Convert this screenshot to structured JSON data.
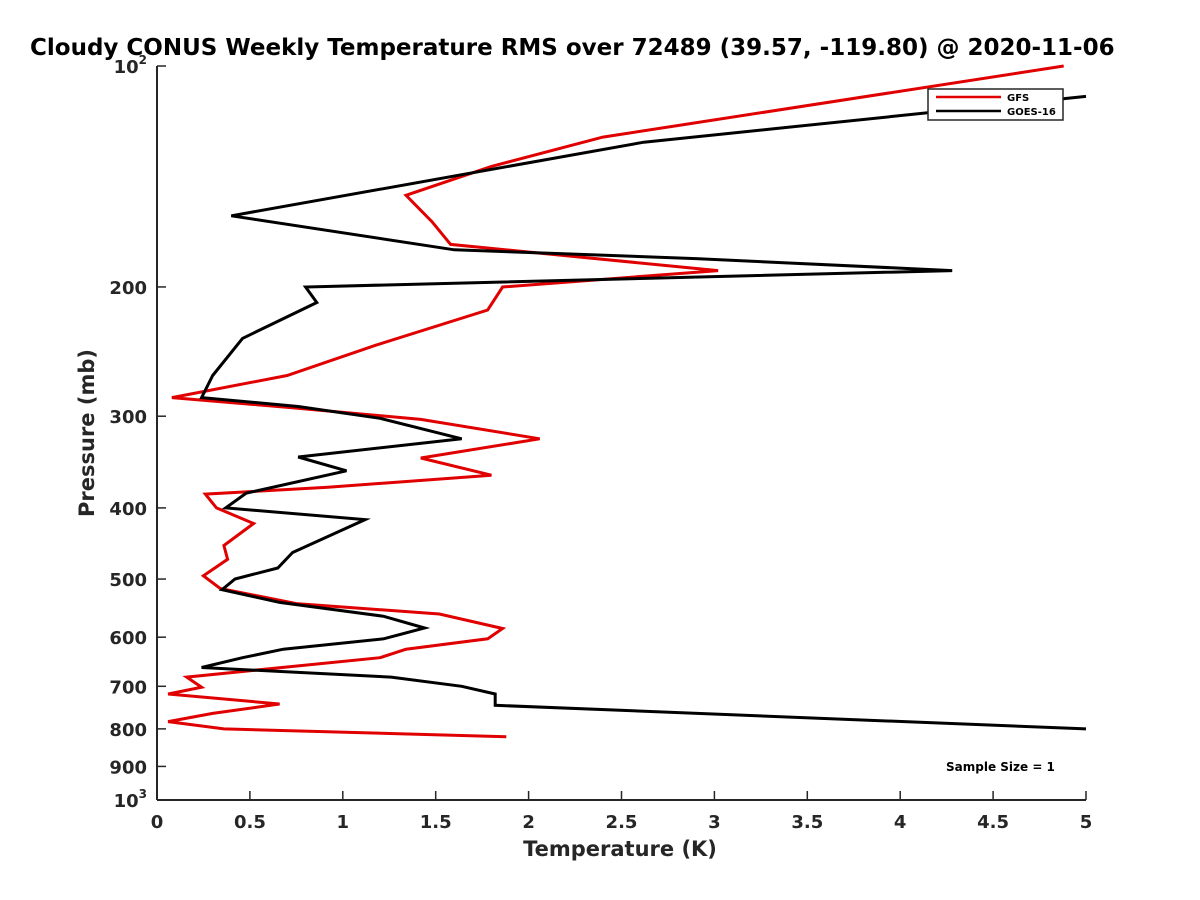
{
  "chart_data": {
    "type": "line",
    "title": "Cloudy CONUS Weekly Temperature RMS over 72489 (39.57, -119.80) @ 2020-11-06",
    "xlabel": "Temperature (K)",
    "ylabel": "Pressure (mb)",
    "xlim": [
      0,
      5
    ],
    "ylim": [
      100,
      1000
    ],
    "yscale": "log",
    "y_reversed": true,
    "grid": false,
    "legend_position": "top-right",
    "x_ticks": [
      "0",
      "0.5",
      "1",
      "1.5",
      "2",
      "2.5",
      "3",
      "3.5",
      "4",
      "4.5",
      "5"
    ],
    "y_ticks": [
      {
        "value": 100,
        "base": "10",
        "exp": "2"
      },
      {
        "value": 200,
        "label": "200"
      },
      {
        "value": 300,
        "label": "300"
      },
      {
        "value": 400,
        "label": "400"
      },
      {
        "value": 500,
        "label": "500"
      },
      {
        "value": 600,
        "label": "600"
      },
      {
        "value": 700,
        "label": "700"
      },
      {
        "value": 800,
        "label": "800"
      },
      {
        "value": 900,
        "label": "900"
      },
      {
        "value": 1000,
        "base": "10",
        "exp": "3"
      }
    ],
    "annotation": "Sample Size = 1",
    "series": [
      {
        "name": "GFS",
        "color": "#e00000",
        "points": [
          [
            4.88,
            100
          ],
          [
            2.4,
            125
          ],
          [
            1.8,
            137
          ],
          [
            1.34,
            150
          ],
          [
            1.48,
            163
          ],
          [
            1.58,
            175
          ],
          [
            3.02,
            190
          ],
          [
            1.86,
            200
          ],
          [
            1.78,
            215
          ],
          [
            1.18,
            240
          ],
          [
            0.7,
            264
          ],
          [
            0.08,
            283
          ],
          [
            0.72,
            292
          ],
          [
            1.42,
            303
          ],
          [
            2.06,
            322
          ],
          [
            1.42,
            342
          ],
          [
            1.8,
            361
          ],
          [
            0.92,
            375
          ],
          [
            0.26,
            383
          ],
          [
            0.32,
            400
          ],
          [
            0.52,
            420
          ],
          [
            0.36,
            450
          ],
          [
            0.38,
            470
          ],
          [
            0.25,
            495
          ],
          [
            0.34,
            515
          ],
          [
            0.75,
            540
          ],
          [
            1.52,
            558
          ],
          [
            1.86,
            584
          ],
          [
            1.78,
            603
          ],
          [
            1.34,
            623
          ],
          [
            1.2,
            640
          ],
          [
            0.72,
            658
          ],
          [
            0.16,
            680
          ],
          [
            0.24,
            702
          ],
          [
            0.06,
            717
          ],
          [
            0.66,
            740
          ],
          [
            0.3,
            762
          ],
          [
            0.06,
            782
          ],
          [
            0.36,
            800
          ],
          [
            1.88,
            820
          ]
        ]
      },
      {
        "name": "GOES-16",
        "color": "#000000",
        "points": [
          [
            5.0,
            110
          ],
          [
            2.62,
            127
          ],
          [
            0.4,
            160
          ],
          [
            1.6,
            178
          ],
          [
            2.9,
            183
          ],
          [
            4.28,
            190
          ],
          [
            0.8,
            200
          ],
          [
            0.86,
            210
          ],
          [
            0.46,
            235
          ],
          [
            0.3,
            264
          ],
          [
            0.24,
            283
          ],
          [
            0.76,
            291
          ],
          [
            1.2,
            302
          ],
          [
            1.64,
            322
          ],
          [
            0.76,
            341
          ],
          [
            1.02,
            356
          ],
          [
            0.48,
            382
          ],
          [
            0.37,
            400
          ],
          [
            1.12,
            415
          ],
          [
            0.73,
            460
          ],
          [
            0.65,
            483
          ],
          [
            0.42,
            500
          ],
          [
            0.35,
            517
          ],
          [
            0.66,
            538
          ],
          [
            1.22,
            562
          ],
          [
            1.44,
            583
          ],
          [
            1.22,
            603
          ],
          [
            0.68,
            623
          ],
          [
            0.46,
            640
          ],
          [
            0.24,
            660
          ],
          [
            1.26,
            680
          ],
          [
            1.64,
            700
          ],
          [
            1.82,
            717
          ],
          [
            1.82,
            743
          ],
          [
            5.0,
            800
          ]
        ]
      }
    ]
  }
}
